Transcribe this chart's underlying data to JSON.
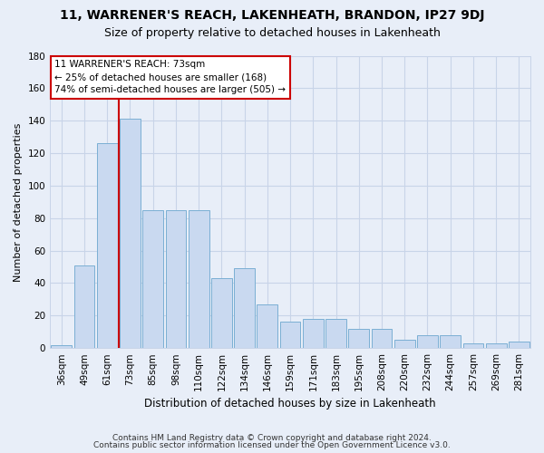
{
  "title": "11, WARRENER'S REACH, LAKENHEATH, BRANDON, IP27 9DJ",
  "subtitle": "Size of property relative to detached houses in Lakenheath",
  "xlabel": "Distribution of detached houses by size in Lakenheath",
  "ylabel": "Number of detached properties",
  "categories": [
    "36sqm",
    "49sqm",
    "61sqm",
    "73sqm",
    "85sqm",
    "98sqm",
    "110sqm",
    "122sqm",
    "134sqm",
    "146sqm",
    "159sqm",
    "171sqm",
    "183sqm",
    "195sqm",
    "208sqm",
    "220sqm",
    "232sqm",
    "244sqm",
    "257sqm",
    "269sqm",
    "281sqm"
  ],
  "bar_values": [
    2,
    51,
    126,
    141,
    85,
    85,
    85,
    43,
    49,
    27,
    16,
    18,
    18,
    12,
    12,
    5,
    8,
    8,
    3,
    3,
    4
  ],
  "bar_color": "#c9d9f0",
  "bar_edge_color": "#7bafd4",
  "redline_index": 2.5,
  "annotation_line1": "11 WARRENER'S REACH: 73sqm",
  "annotation_line2": "← 25% of detached houses are smaller (168)",
  "annotation_line3": "74% of semi-detached houses are larger (505) →",
  "annotation_box_facecolor": "#ffffff",
  "annotation_box_edgecolor": "#cc0000",
  "redline_color": "#cc0000",
  "grid_color": "#c8d4e8",
  "background_color": "#e8eef8",
  "footer1": "Contains HM Land Registry data © Crown copyright and database right 2024.",
  "footer2": "Contains public sector information licensed under the Open Government Licence v3.0.",
  "ylim": [
    0,
    180
  ],
  "yticks": [
    0,
    20,
    40,
    60,
    80,
    100,
    120,
    140,
    160,
    180
  ],
  "title_fontsize": 10,
  "subtitle_fontsize": 9,
  "xlabel_fontsize": 8.5,
  "ylabel_fontsize": 8,
  "tick_fontsize": 7.5,
  "annotation_fontsize": 7.5,
  "footer_fontsize": 6.5
}
